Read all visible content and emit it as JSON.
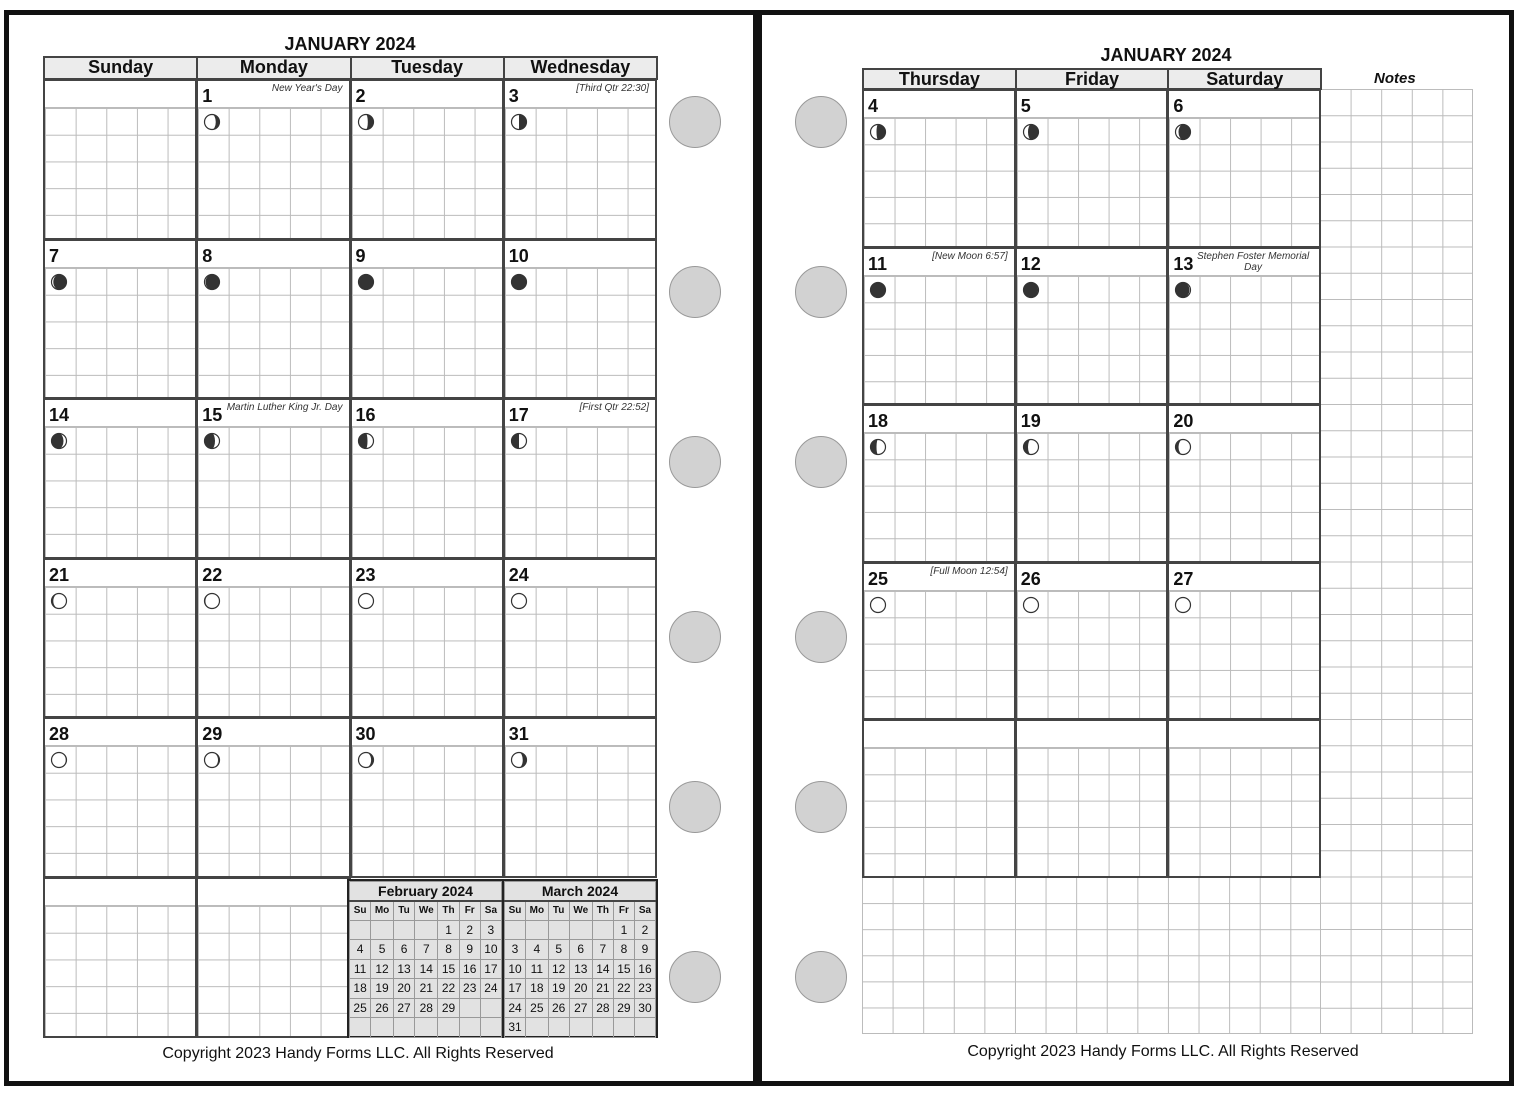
{
  "left_page": {
    "title": "JANUARY 2024",
    "weekdays": [
      "Sunday",
      "Monday",
      "Tuesday",
      "Wednesday"
    ],
    "copyright": "Copyright 2023 Handy Forms LLC. All Rights Reserved"
  },
  "right_page": {
    "title": "JANUARY 2024",
    "weekdays": [
      "Thursday",
      "Friday",
      "Saturday"
    ],
    "notes_label": "Notes",
    "copyright": "Copyright 2023 Handy Forms LLC. All Rights Reserved"
  },
  "days": {
    "1": {
      "label": "1",
      "note": "New Year's Day",
      "moon": {
        "illumination": 0.75,
        "waxing": false
      }
    },
    "2": {
      "label": "2",
      "note": "",
      "moon": {
        "illumination": 0.62,
        "waxing": false
      }
    },
    "3": {
      "label": "3",
      "note": "[Third Qtr 22:30]",
      "moon": {
        "illumination": 0.5,
        "waxing": false
      }
    },
    "4": {
      "label": "4",
      "note": "",
      "moon": {
        "illumination": 0.4,
        "waxing": false
      }
    },
    "5": {
      "label": "5",
      "note": "",
      "moon": {
        "illumination": 0.3,
        "waxing": false
      }
    },
    "6": {
      "label": "6",
      "note": "",
      "moon": {
        "illumination": 0.2,
        "waxing": false
      }
    },
    "7": {
      "label": "7",
      "note": "",
      "moon": {
        "illumination": 0.12,
        "waxing": false
      }
    },
    "8": {
      "label": "8",
      "note": "",
      "moon": {
        "illumination": 0.07,
        "waxing": false
      }
    },
    "9": {
      "label": "9",
      "note": "",
      "moon": {
        "illumination": 0.03,
        "waxing": false
      }
    },
    "10": {
      "label": "10",
      "note": "",
      "moon": {
        "illumination": 0.01,
        "waxing": false
      }
    },
    "11": {
      "label": "11",
      "note": "[New Moon 6:57]",
      "moon": {
        "illumination": 0.0,
        "waxing": true
      }
    },
    "12": {
      "label": "12",
      "note": "",
      "moon": {
        "illumination": 0.03,
        "waxing": true
      }
    },
    "13": {
      "label": "13",
      "note": "Stephen Foster Memorial Day",
      "moon": {
        "illumination": 0.07,
        "waxing": true
      }
    },
    "14": {
      "label": "14",
      "note": "",
      "moon": {
        "illumination": 0.2,
        "waxing": true
      }
    },
    "15": {
      "label": "15",
      "note": "Martin Luther King Jr. Day",
      "moon": {
        "illumination": 0.3,
        "waxing": true
      }
    },
    "16": {
      "label": "16",
      "note": "",
      "moon": {
        "illumination": 0.4,
        "waxing": true
      }
    },
    "17": {
      "label": "17",
      "note": "[First Qtr 22:52]",
      "moon": {
        "illumination": 0.5,
        "waxing": true
      }
    },
    "18": {
      "label": "18",
      "note": "",
      "moon": {
        "illumination": 0.6,
        "waxing": true
      }
    },
    "19": {
      "label": "19",
      "note": "",
      "moon": {
        "illumination": 0.7,
        "waxing": true
      }
    },
    "20": {
      "label": "20",
      "note": "",
      "moon": {
        "illumination": 0.8,
        "waxing": true
      }
    },
    "21": {
      "label": "21",
      "note": "",
      "moon": {
        "illumination": 0.88,
        "waxing": true
      }
    },
    "22": {
      "label": "22",
      "note": "",
      "moon": {
        "illumination": 0.94,
        "waxing": true
      }
    },
    "23": {
      "label": "23",
      "note": "",
      "moon": {
        "illumination": 0.98,
        "waxing": true
      }
    },
    "24": {
      "label": "24",
      "note": "",
      "moon": {
        "illumination": 1.0,
        "waxing": true
      }
    },
    "25": {
      "label": "25",
      "note": "[Full Moon 12:54]",
      "moon": {
        "illumination": 1.0,
        "waxing": false
      }
    },
    "26": {
      "label": "26",
      "note": "",
      "moon": {
        "illumination": 1.0,
        "waxing": false
      }
    },
    "27": {
      "label": "27",
      "note": "",
      "moon": {
        "illumination": 0.99,
        "waxing": false
      }
    },
    "28": {
      "label": "28",
      "note": "",
      "moon": {
        "illumination": 0.95,
        "waxing": false
      }
    },
    "29": {
      "label": "29",
      "note": "",
      "moon": {
        "illumination": 0.9,
        "waxing": false
      }
    },
    "30": {
      "label": "30",
      "note": "",
      "moon": {
        "illumination": 0.84,
        "waxing": false
      }
    },
    "31": {
      "label": "31",
      "note": "",
      "moon": {
        "illumination": 0.75,
        "waxing": false
      }
    }
  },
  "mini_calendars": [
    {
      "title": "February 2024",
      "weekdays": [
        "Su",
        "Mo",
        "Tu",
        "We",
        "Th",
        "Fr",
        "Sa"
      ],
      "weeks": [
        [
          "",
          "",
          "",
          "",
          "1",
          "2",
          "3"
        ],
        [
          "4",
          "5",
          "6",
          "7",
          "8",
          "9",
          "10"
        ],
        [
          "11",
          "12",
          "13",
          "14",
          "15",
          "16",
          "17"
        ],
        [
          "18",
          "19",
          "20",
          "21",
          "22",
          "23",
          "24"
        ],
        [
          "25",
          "26",
          "27",
          "28",
          "29",
          "",
          ""
        ],
        [
          "",
          "",
          "",
          "",
          "",
          "",
          ""
        ]
      ]
    },
    {
      "title": "March 2024",
      "weekdays": [
        "Su",
        "Mo",
        "Tu",
        "We",
        "Th",
        "Fr",
        "Sa"
      ],
      "weeks": [
        [
          "",
          "",
          "",
          "",
          "",
          "1",
          "2"
        ],
        [
          "3",
          "4",
          "5",
          "6",
          "7",
          "8",
          "9"
        ],
        [
          "10",
          "11",
          "12",
          "13",
          "14",
          "15",
          "16"
        ],
        [
          "17",
          "18",
          "19",
          "20",
          "21",
          "22",
          "23"
        ],
        [
          "24",
          "25",
          "26",
          "27",
          "28",
          "29",
          "30"
        ],
        [
          "31",
          "",
          "",
          "",
          "",
          "",
          ""
        ]
      ]
    }
  ],
  "colors": {
    "header_fill": "#ececec",
    "hole_fill": "#d2d2d2",
    "grid_line": "#bbbbbb",
    "mini_fill": "#e2e2e2"
  }
}
